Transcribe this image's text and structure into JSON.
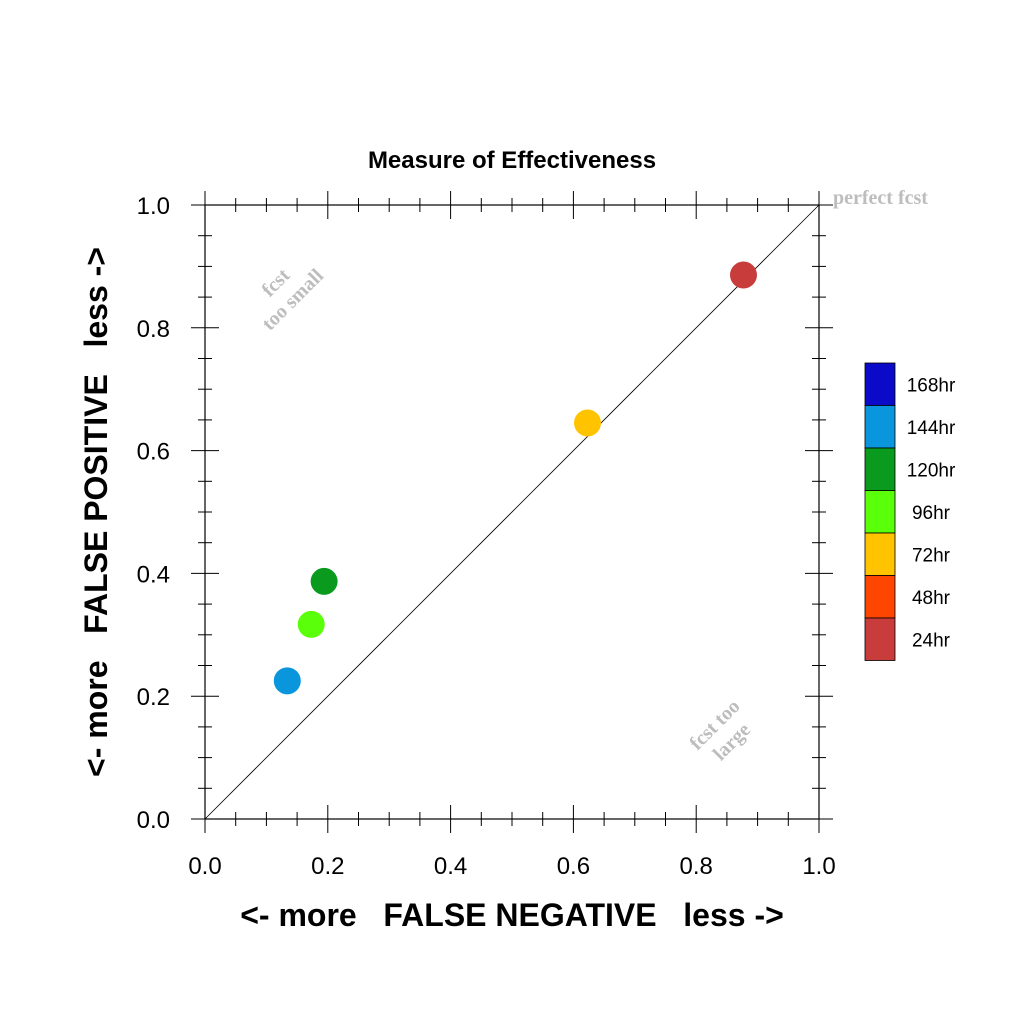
{
  "chart_data": {
    "type": "scatter",
    "title": "Measure of Effectiveness",
    "xlabel": "<- more   FALSE NEGATIVE   less ->",
    "ylabel": "<- more   FALSE POSITIVE   less ->",
    "xlim": [
      0,
      1
    ],
    "ylim": [
      0,
      1
    ],
    "xticks": [
      "0.0",
      "0.2",
      "0.4",
      "0.6",
      "0.8",
      "1.0"
    ],
    "yticks": [
      "0.0",
      "0.2",
      "0.4",
      "0.6",
      "0.8",
      "1.0"
    ],
    "grid": false,
    "diagonal_line": true,
    "annotations": {
      "perfect": "perfect fcst",
      "small_line1": "fcst",
      "small_line2": "too small",
      "large_line1": "fcst too",
      "large_line2": "large"
    },
    "legend": [
      {
        "name": "168hr",
        "color": "#0a0ac8"
      },
      {
        "name": "144hr",
        "color": "#0a96dc"
      },
      {
        "name": "120hr",
        "color": "#0a9b1e"
      },
      {
        "name": "96hr",
        "color": "#5aff0a"
      },
      {
        "name": "72hr",
        "color": "#ffc300"
      },
      {
        "name": "48hr",
        "color": "#ff4600"
      },
      {
        "name": "24hr",
        "color": "#c83c3c"
      }
    ],
    "points": [
      {
        "series": "144hr",
        "x": 0.134,
        "y": 0.225,
        "color": "#0a96dc"
      },
      {
        "series": "96hr",
        "x": 0.173,
        "y": 0.317,
        "color": "#5aff0a"
      },
      {
        "series": "120hr",
        "x": 0.194,
        "y": 0.387,
        "color": "#0a9b1e"
      },
      {
        "series": "72hr",
        "x": 0.623,
        "y": 0.645,
        "color": "#ffc300"
      },
      {
        "series": "24hr",
        "x": 0.877,
        "y": 0.886,
        "color": "#c83c3c"
      }
    ]
  }
}
